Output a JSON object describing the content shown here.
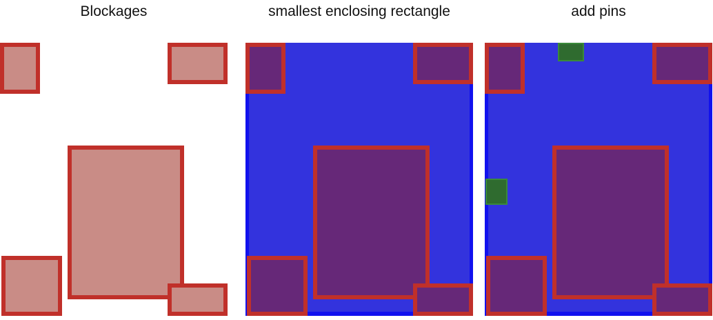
{
  "colors": {
    "blockage_border": "#c0302a",
    "blockage_fill_plain": "#c98c86",
    "blockage_fill_overlaid": "#662878",
    "enclosing_fill": "#3333dd",
    "enclosing_border": "#1111ee",
    "pin_fill": "#2f6b2f",
    "pin_border": "#3a8a3a"
  },
  "panels": [
    {
      "id": "blockages",
      "title": "Blockages",
      "show_enclosing": false,
      "show_pins": false
    },
    {
      "id": "enclosing",
      "title": "smallest enclosing rectangle",
      "show_enclosing": true,
      "show_pins": false
    },
    {
      "id": "pins",
      "title": "add pins",
      "show_enclosing": true,
      "show_pins": true
    }
  ]
}
